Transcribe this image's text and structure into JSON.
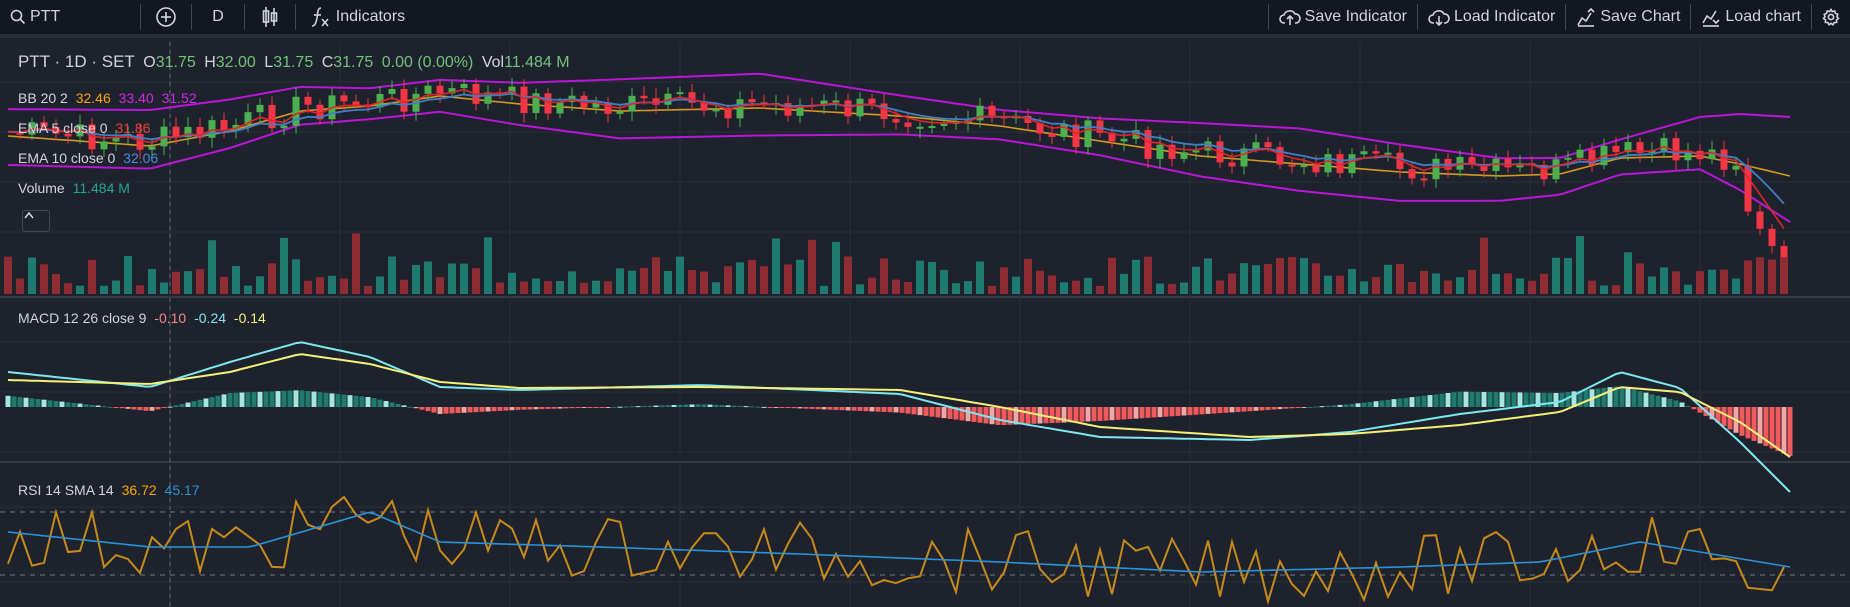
{
  "toolbar": {
    "symbol": "PTT",
    "interval": "D",
    "indicators_label": "Indicators",
    "save_indicator_label": "Save Indicator",
    "load_indicator_label": "Load Indicator",
    "save_chart_label": "Save Chart",
    "load_chart_label": "Load chart",
    "icons": [
      "search-icon",
      "add-symbol-icon",
      "candles-icon",
      "function-icon",
      "cloud-upload-icon",
      "cloud-download-icon",
      "save-chart-icon",
      "load-chart-icon",
      "settings-icon"
    ]
  },
  "legend": {
    "title": "PTT · 1D · SET",
    "o_label": "O",
    "o": "31.75",
    "h_label": "H",
    "h": "32.00",
    "l_label": "L",
    "l": "31.75",
    "c_label": "C",
    "c": "31.75",
    "change": "0.00 (0.00%)",
    "vol_label": "Vol",
    "vol": "11.484 M",
    "bb": {
      "label": "BB 20 2",
      "v1": "32.46",
      "v2": "33.40",
      "v3": "31.52"
    },
    "ema5": {
      "label": "EMA 5 close 0",
      "value": "31.86"
    },
    "ema10": {
      "label": "EMA 10 close 0",
      "value": "32.06"
    },
    "volume": {
      "label": "Volume",
      "value": "11.484 M"
    },
    "macd": {
      "label": "MACD 12 26 close 9",
      "hist": "-0.10",
      "macd": "-0.24",
      "signal": "-0.14"
    },
    "rsi": {
      "label": "RSI 14 SMA 14",
      "rsi": "36.72",
      "sma": "45.17"
    }
  },
  "colors": {
    "up": "#26a69a",
    "down": "#ef5350",
    "candle_up": "#4caf50",
    "candle_down": "#f23645",
    "bb_band": "#b817d6",
    "bb_mid": "#d39a1f",
    "ema5": "#e0262a",
    "ema10": "#3f7fc7",
    "macd_line": "#7ee8f0",
    "signal_line": "#f5f07a",
    "rsi_line": "#c68a1b",
    "rsi_sma": "#2a93d8",
    "orange_text": "#f7a600",
    "magenta_text": "#d526e8",
    "red_text": "#e8403c",
    "blue_text": "#4a8be0",
    "teal_text": "#26a69a",
    "green_text": "#73c27a"
  },
  "chart_data": {
    "type": "candlestick",
    "series": [
      {
        "name": "BB 20 2 upper",
        "start": 33.4,
        "end": 33.4
      },
      {
        "name": "BB 20 2 lower",
        "end": 31.52
      },
      {
        "name": "EMA 5",
        "end": 31.86
      },
      {
        "name": "EMA 10",
        "end": 32.06
      },
      {
        "name": "MACD",
        "end": -0.24
      },
      {
        "name": "Signal",
        "end": -0.14
      },
      {
        "name": "Histogram",
        "end": -0.1
      },
      {
        "name": "RSI 14",
        "end": 36.72
      },
      {
        "name": "RSI SMA 14",
        "end": 45.17
      }
    ],
    "last_bar": {
      "open": 31.75,
      "high": 32.0,
      "low": 31.75,
      "close": 31.75,
      "volume": "11.484 M"
    },
    "rsi_bands": [
      70,
      30
    ]
  }
}
